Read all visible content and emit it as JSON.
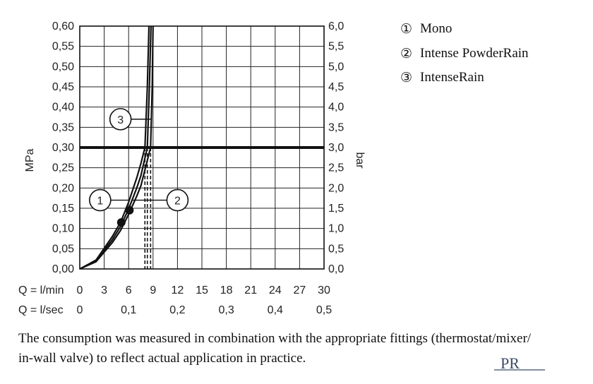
{
  "chart_data": {
    "type": "line",
    "ylabel_left": "MPa",
    "ylabel_right": "bar",
    "y_ticks_left": [
      "0,00",
      "0,05",
      "0,10",
      "0,15",
      "0,20",
      "0,25",
      "0,30",
      "0,35",
      "0,40",
      "0,45",
      "0,50",
      "0,55",
      "0,60"
    ],
    "y_ticks_right": [
      "0,0",
      "0,5",
      "1,0",
      "1,5",
      "2,0",
      "2,5",
      "3,0",
      "3,5",
      "4,0",
      "4,5",
      "5,0",
      "5,5",
      "6,0"
    ],
    "ylim": [
      0,
      0.6
    ],
    "xlim": [
      0,
      30
    ],
    "x_row1_label": "Q = l/min",
    "x_row1_ticks": [
      "0",
      "3",
      "6",
      "9",
      "12",
      "15",
      "18",
      "21",
      "24",
      "27",
      "30"
    ],
    "x_row2_label": "Q = l/sec",
    "x_row2_ticks": [
      {
        "q": 0,
        "label": "0"
      },
      {
        "q": 6,
        "label": "0,1"
      },
      {
        "q": 12,
        "label": "0,2"
      },
      {
        "q": 18,
        "label": "0,3"
      },
      {
        "q": 24,
        "label": "0,4"
      },
      {
        "q": 30,
        "label": "0,5"
      }
    ],
    "reference_pressure": 0.3,
    "series": [
      {
        "id": "1",
        "name": "Mono",
        "x": [
          0,
          2,
          4,
          5,
          6,
          7,
          7.5,
          8.0,
          8.3,
          8.5
        ],
        "y": [
          0,
          0.022,
          0.08,
          0.115,
          0.165,
          0.225,
          0.26,
          0.3,
          0.45,
          0.6
        ],
        "flow_at_reference": 8.0
      },
      {
        "id": "2",
        "name": "Intense PowderRain",
        "x": [
          0,
          2,
          4,
          5,
          6,
          7,
          7.5,
          8.3,
          8.55,
          8.75
        ],
        "y": [
          0,
          0.02,
          0.072,
          0.105,
          0.148,
          0.2,
          0.23,
          0.3,
          0.45,
          0.6
        ],
        "flow_at_reference": 8.3
      },
      {
        "id": "3",
        "name": "IntenseRain",
        "x": [
          0,
          2,
          4,
          5,
          6,
          7,
          7.5,
          8.7,
          8.9,
          9.0
        ],
        "y": [
          0,
          0.018,
          0.065,
          0.095,
          0.135,
          0.18,
          0.205,
          0.3,
          0.45,
          0.6
        ],
        "flow_at_reference": 8.7
      }
    ],
    "markers": [
      {
        "series": "1",
        "x": 5.1,
        "y": 0.115
      },
      {
        "series": "2",
        "x": 6.1,
        "y": 0.145
      }
    ],
    "callouts": [
      {
        "label": "1",
        "series": "1",
        "at_y": 0.17
      },
      {
        "label": "2",
        "series": "2",
        "at_y": 0.17
      },
      {
        "label": "3",
        "series": "3",
        "at_y": 0.37
      }
    ],
    "grid": true
  },
  "legend": [
    {
      "symbol": "①",
      "label": "Mono"
    },
    {
      "symbol": "②",
      "label": "Intense PowderRain"
    },
    {
      "symbol": "③",
      "label": "IntenseRain"
    }
  ],
  "note": {
    "line1": "The consumption was measured in combination with the appropriate fittings (thermostat/mixer/",
    "line2": "in-wall valve) to reflect actual application in practice."
  },
  "logo_text": "PR"
}
